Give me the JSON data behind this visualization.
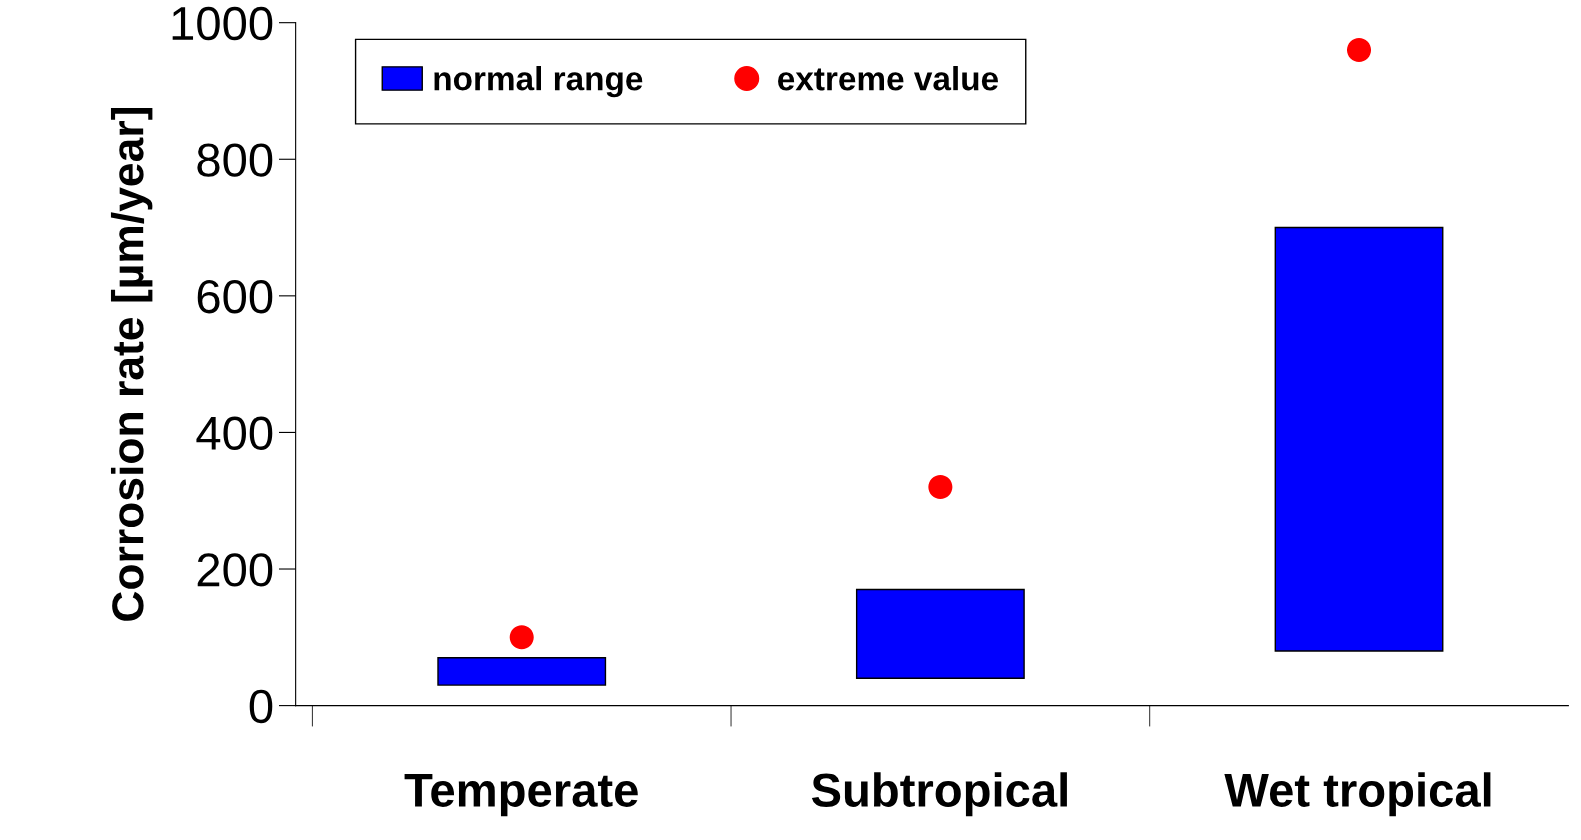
{
  "chart_data": {
    "type": "bar",
    "ylabel": "Corrosion rate [µm/year]",
    "categories": [
      "Temperate",
      "Subtropical",
      "Wet tropical"
    ],
    "series": [
      {
        "name": "normal range",
        "color": "#0000ff",
        "base": [
          30,
          40,
          80
        ],
        "values": [
          40,
          130,
          620
        ]
      },
      {
        "name": "extreme value",
        "type": "scatter",
        "color": "#ff0000",
        "x": [
          "Temperate",
          "Subtropical",
          "Wet tropical"
        ],
        "values": [
          100,
          320,
          960
        ],
        "marker": "circle"
      }
    ],
    "ylim": [
      0,
      1000
    ],
    "yticks": [
      0,
      200,
      400,
      600,
      800,
      1000
    ],
    "grid": false,
    "legend": "top"
  }
}
